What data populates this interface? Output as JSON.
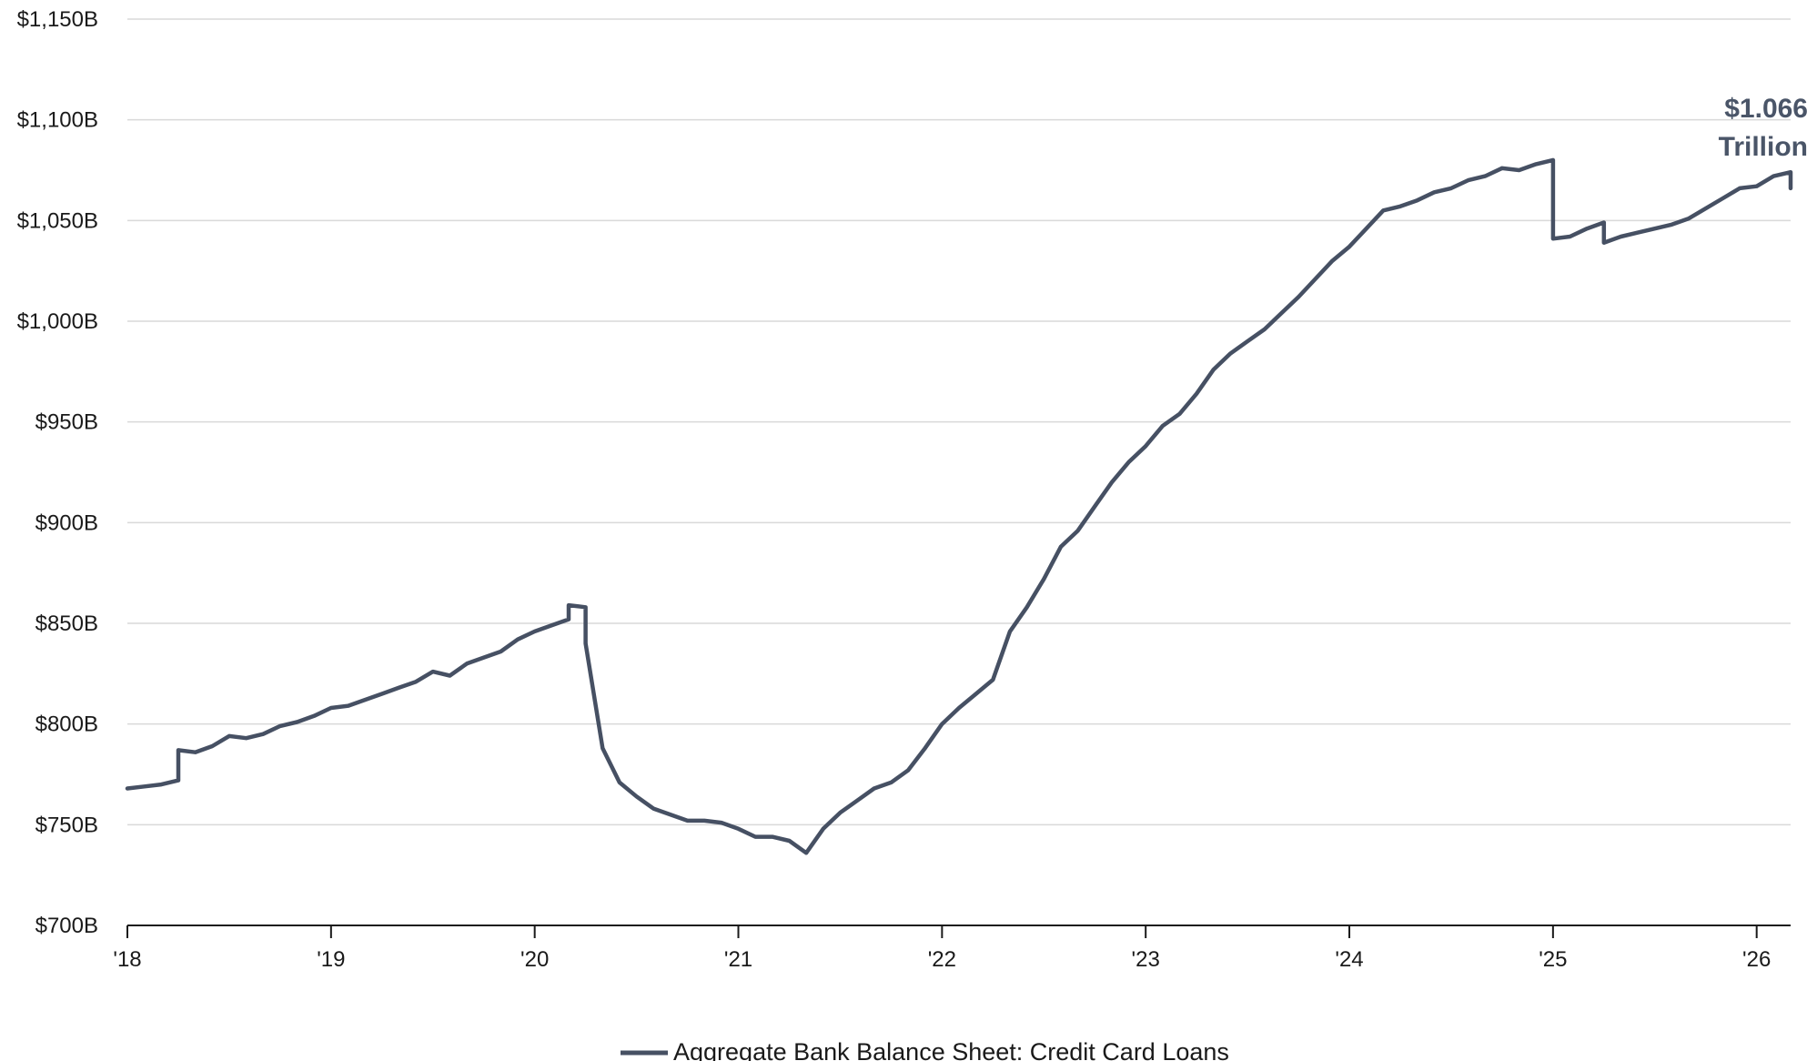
{
  "chart_data": {
    "type": "line",
    "title": "",
    "xlabel": "",
    "ylabel": "",
    "ylim": [
      700,
      1150
    ],
    "xlim": [
      "2018-01",
      "2026-03"
    ],
    "grid": "horizontal",
    "legend_position": "bottom-center",
    "y_ticks": [
      {
        "value": 700,
        "label": "$700B"
      },
      {
        "value": 750,
        "label": "$750B"
      },
      {
        "value": 800,
        "label": "$800B"
      },
      {
        "value": 850,
        "label": "$850B"
      },
      {
        "value": 900,
        "label": "$900B"
      },
      {
        "value": 950,
        "label": "$950B"
      },
      {
        "value": 1000,
        "label": "$1,000B"
      },
      {
        "value": 1050,
        "label": "$1,050B"
      },
      {
        "value": 1100,
        "label": "$1,100B"
      },
      {
        "value": 1150,
        "label": "$1,150B"
      }
    ],
    "x_ticks": [
      {
        "value": "2018-01",
        "label": "'18"
      },
      {
        "value": "2019-01",
        "label": "'19"
      },
      {
        "value": "2020-01",
        "label": "'20"
      },
      {
        "value": "2021-01",
        "label": "'21"
      },
      {
        "value": "2022-01",
        "label": "'22"
      },
      {
        "value": "2023-01",
        "label": "'23"
      },
      {
        "value": "2024-01",
        "label": "'24"
      },
      {
        "value": "2025-01",
        "label": "'25"
      },
      {
        "value": "2026-01",
        "label": "'26"
      }
    ],
    "series": [
      {
        "name": "Aggregate Bank Balance Sheet: Credit Card Loans",
        "color": "#465063",
        "points": [
          [
            "2018-01",
            768
          ],
          [
            "2018-02",
            769
          ],
          [
            "2018-03",
            770
          ],
          [
            "2018-04",
            772
          ],
          [
            "2018-04",
            787
          ],
          [
            "2018-05",
            786
          ],
          [
            "2018-06",
            789
          ],
          [
            "2018-07",
            794
          ],
          [
            "2018-08",
            793
          ],
          [
            "2018-09",
            795
          ],
          [
            "2018-10",
            799
          ],
          [
            "2018-11",
            801
          ],
          [
            "2018-12",
            804
          ],
          [
            "2019-01",
            808
          ],
          [
            "2019-02",
            809
          ],
          [
            "2019-03",
            812
          ],
          [
            "2019-04",
            815
          ],
          [
            "2019-05",
            818
          ],
          [
            "2019-06",
            821
          ],
          [
            "2019-07",
            826
          ],
          [
            "2019-08",
            824
          ],
          [
            "2019-09",
            830
          ],
          [
            "2019-10",
            833
          ],
          [
            "2019-11",
            836
          ],
          [
            "2019-12",
            842
          ],
          [
            "2020-01",
            846
          ],
          [
            "2020-02",
            849
          ],
          [
            "2020-03",
            852
          ],
          [
            "2020-03",
            859
          ],
          [
            "2020-04",
            858
          ],
          [
            "2020-04",
            840
          ],
          [
            "2020-05",
            788
          ],
          [
            "2020-06",
            771
          ],
          [
            "2020-07",
            764
          ],
          [
            "2020-08",
            758
          ],
          [
            "2020-09",
            755
          ],
          [
            "2020-10",
            752
          ],
          [
            "2020-11",
            752
          ],
          [
            "2020-12",
            751
          ],
          [
            "2021-01",
            748
          ],
          [
            "2021-02",
            744
          ],
          [
            "2021-03",
            744
          ],
          [
            "2021-04",
            742
          ],
          [
            "2021-05",
            736
          ],
          [
            "2021-06",
            748
          ],
          [
            "2021-07",
            756
          ],
          [
            "2021-08",
            762
          ],
          [
            "2021-09",
            768
          ],
          [
            "2021-10",
            771
          ],
          [
            "2021-11",
            777
          ],
          [
            "2021-12",
            788
          ],
          [
            "2022-01",
            800
          ],
          [
            "2022-02",
            808
          ],
          [
            "2022-03",
            815
          ],
          [
            "2022-04",
            822
          ],
          [
            "2022-05",
            846
          ],
          [
            "2022-06",
            858
          ],
          [
            "2022-07",
            872
          ],
          [
            "2022-08",
            888
          ],
          [
            "2022-09",
            896
          ],
          [
            "2022-10",
            908
          ],
          [
            "2022-11",
            920
          ],
          [
            "2022-12",
            930
          ],
          [
            "2023-01",
            938
          ],
          [
            "2023-02",
            948
          ],
          [
            "2023-03",
            954
          ],
          [
            "2023-04",
            964
          ],
          [
            "2023-05",
            976
          ],
          [
            "2023-06",
            984
          ],
          [
            "2023-07",
            990
          ],
          [
            "2023-08",
            996
          ],
          [
            "2023-09",
            1004
          ],
          [
            "2023-10",
            1012
          ],
          [
            "2023-11",
            1021
          ],
          [
            "2023-12",
            1030
          ],
          [
            "2024-01",
            1037
          ],
          [
            "2024-02",
            1046
          ],
          [
            "2024-03",
            1055
          ],
          [
            "2024-04",
            1057
          ],
          [
            "2024-05",
            1060
          ],
          [
            "2024-06",
            1064
          ],
          [
            "2024-07",
            1066
          ],
          [
            "2024-08",
            1070
          ],
          [
            "2024-09",
            1072
          ],
          [
            "2024-10",
            1076
          ],
          [
            "2024-11",
            1075
          ],
          [
            "2024-12",
            1078
          ],
          [
            "2025-01",
            1080
          ],
          [
            "2025-01",
            1041
          ],
          [
            "2025-02",
            1042
          ],
          [
            "2025-03",
            1046
          ],
          [
            "2025-04",
            1049
          ],
          [
            "2025-04",
            1039
          ],
          [
            "2025-05",
            1042
          ],
          [
            "2025-06",
            1044
          ],
          [
            "2025-07",
            1046
          ],
          [
            "2025-08",
            1048
          ],
          [
            "2025-09",
            1051
          ],
          [
            "2025-10",
            1056
          ],
          [
            "2025-11",
            1061
          ],
          [
            "2025-12",
            1066
          ],
          [
            "2026-01",
            1067
          ],
          [
            "2026-02",
            1072
          ],
          [
            "2026-03",
            1074
          ],
          [
            "2026-03",
            1066
          ]
        ]
      }
    ],
    "annotation": {
      "lines": [
        "$1.066",
        "Trillion"
      ],
      "x": "2026-03",
      "y": 1066,
      "color": "#4a5568"
    }
  }
}
